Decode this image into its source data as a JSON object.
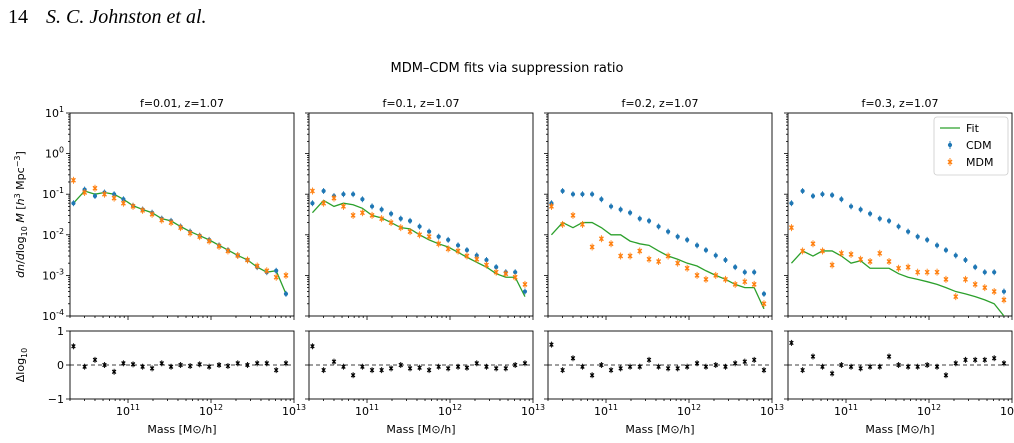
{
  "page_header": {
    "page_number": "14",
    "authors": "S. C. Johnston et al."
  },
  "figure": {
    "suptitle": "MDM–CDM fits via suppression ratio",
    "xlabel": "Mass [$M_\\odot/h$]",
    "ylabel_top": "dn/dlog10 M [h3 Mpc−3]",
    "ylabel_bottom": "Δlog10"
  },
  "colors": {
    "cdm": "#1f77b4",
    "mdm": "#ff7f0e",
    "fit": "#2ca02c",
    "residual": "#000000"
  },
  "chart_data": [
    {
      "type": "scatter",
      "title": "f=0.01, z=1.07",
      "xscale": "log",
      "yscale": "log",
      "xlim": [
        20000000000.0,
        10000000000000.0
      ],
      "ylim": [
        0.0001,
        10
      ],
      "x": [
        22000000000.0,
        30000000000.0,
        40000000000.0,
        52000000000.0,
        68000000000.0,
        88000000000.0,
        115000000000.0,
        150000000000.0,
        195000000000.0,
        255000000000.0,
        330000000000.0,
        430000000000.0,
        560000000000.0,
        730000000000.0,
        950000000000.0,
        1250000000000.0,
        1600000000000.0,
        2100000000000.0,
        2750000000000.0,
        3600000000000.0,
        4700000000000.0,
        6100000000000.0,
        8000000000000.0
      ],
      "series": [
        {
          "name": "CDM",
          "values": [
            0.06,
            0.13,
            0.09,
            0.11,
            0.1,
            0.075,
            0.052,
            0.042,
            0.035,
            0.025,
            0.022,
            0.016,
            0.012,
            0.0095,
            0.0075,
            0.0055,
            0.0042,
            0.0031,
            0.0024,
            0.0016,
            0.0012,
            0.0013,
            0.00035
          ]
        },
        {
          "name": "MDM",
          "values": [
            0.22,
            0.11,
            0.14,
            0.1,
            0.08,
            0.06,
            0.05,
            0.04,
            0.032,
            0.023,
            0.02,
            0.015,
            0.011,
            0.009,
            0.007,
            0.0052,
            0.004,
            0.0031,
            0.0024,
            0.0017,
            0.0013,
            0.0009,
            0.001
          ]
        },
        {
          "name": "Fit",
          "values": [
            0.06,
            0.12,
            0.1,
            0.11,
            0.1,
            0.075,
            0.052,
            0.042,
            0.035,
            0.025,
            0.022,
            0.016,
            0.012,
            0.0095,
            0.0075,
            0.0055,
            0.0042,
            0.0031,
            0.0024,
            0.0016,
            0.0012,
            0.0013,
            0.00035
          ]
        }
      ],
      "residual": {
        "ylim": [
          -1,
          1
        ],
        "values": [
          0.55,
          -0.05,
          0.15,
          0.0,
          -0.2,
          0.05,
          0.02,
          -0.05,
          -0.1,
          0.05,
          -0.05,
          0.0,
          -0.03,
          0.02,
          -0.05,
          0.0,
          -0.03,
          0.05,
          0.0,
          0.05,
          0.05,
          -0.15,
          0.05
        ]
      }
    },
    {
      "type": "scatter",
      "title": "f=0.1, z=1.07",
      "xscale": "log",
      "yscale": "log",
      "xlim": [
        20000000000.0,
        10000000000000.0
      ],
      "ylim": [
        0.0001,
        10
      ],
      "x": [
        22000000000.0,
        30000000000.0,
        40000000000.0,
        52000000000.0,
        68000000000.0,
        88000000000.0,
        115000000000.0,
        150000000000.0,
        195000000000.0,
        255000000000.0,
        330000000000.0,
        430000000000.0,
        560000000000.0,
        730000000000.0,
        950000000000.0,
        1250000000000.0,
        1600000000000.0,
        2100000000000.0,
        2750000000000.0,
        3600000000000.0,
        4700000000000.0,
        6100000000000.0,
        8000000000000.0
      ],
      "series": [
        {
          "name": "CDM",
          "values": [
            0.06,
            0.12,
            0.09,
            0.1,
            0.1,
            0.075,
            0.05,
            0.042,
            0.033,
            0.025,
            0.022,
            0.016,
            0.012,
            0.009,
            0.0075,
            0.0055,
            0.0042,
            0.0031,
            0.0024,
            0.0016,
            0.0012,
            0.0012,
            0.0004
          ]
        },
        {
          "name": "MDM",
          "values": [
            0.12,
            0.06,
            0.08,
            0.05,
            0.03,
            0.035,
            0.03,
            0.025,
            0.02,
            0.015,
            0.012,
            0.01,
            0.009,
            0.006,
            0.0045,
            0.004,
            0.003,
            0.0025,
            0.0018,
            0.0012,
            0.0011,
            0.0009,
            0.0006
          ]
        },
        {
          "name": "Fit",
          "values": [
            0.035,
            0.07,
            0.05,
            0.06,
            0.055,
            0.045,
            0.03,
            0.026,
            0.02,
            0.015,
            0.014,
            0.01,
            0.0075,
            0.006,
            0.005,
            0.0037,
            0.0028,
            0.0021,
            0.0016,
            0.0011,
            0.0009,
            0.0009,
            0.0003
          ]
        }
      ],
      "residual": {
        "ylim": [
          -1,
          1
        ],
        "values": [
          0.55,
          -0.15,
          0.1,
          -0.05,
          -0.3,
          -0.05,
          -0.15,
          -0.15,
          -0.1,
          0.0,
          -0.1,
          -0.08,
          -0.15,
          -0.05,
          -0.1,
          -0.05,
          -0.08,
          0.05,
          -0.05,
          -0.1,
          -0.1,
          0.0,
          0.05
        ]
      }
    },
    {
      "type": "scatter",
      "title": "f=0.2, z=1.07",
      "xscale": "log",
      "yscale": "log",
      "xlim": [
        20000000000.0,
        10000000000000.0
      ],
      "ylim": [
        0.0001,
        10
      ],
      "x": [
        22000000000.0,
        30000000000.0,
        40000000000.0,
        52000000000.0,
        68000000000.0,
        88000000000.0,
        115000000000.0,
        150000000000.0,
        195000000000.0,
        255000000000.0,
        330000000000.0,
        430000000000.0,
        560000000000.0,
        730000000000.0,
        950000000000.0,
        1250000000000.0,
        1600000000000.0,
        2100000000000.0,
        2750000000000.0,
        3600000000000.0,
        4700000000000.0,
        6100000000000.0,
        8000000000000.0
      ],
      "series": [
        {
          "name": "CDM",
          "values": [
            0.06,
            0.12,
            0.1,
            0.1,
            0.1,
            0.075,
            0.05,
            0.042,
            0.035,
            0.025,
            0.022,
            0.016,
            0.012,
            0.009,
            0.0075,
            0.0055,
            0.0042,
            0.0031,
            0.0024,
            0.0016,
            0.0012,
            0.0012,
            0.00035
          ]
        },
        {
          "name": "MDM",
          "values": [
            0.05,
            0.018,
            0.03,
            0.018,
            0.005,
            0.008,
            0.006,
            0.003,
            0.003,
            0.004,
            0.0025,
            0.0022,
            0.003,
            0.002,
            0.0015,
            0.001,
            0.0008,
            0.001,
            0.0008,
            0.0006,
            0.0007,
            0.0006,
            0.0002
          ]
        },
        {
          "name": "Fit",
          "values": [
            0.01,
            0.02,
            0.015,
            0.02,
            0.02,
            0.015,
            0.01,
            0.01,
            0.007,
            0.006,
            0.0055,
            0.004,
            0.003,
            0.0025,
            0.002,
            0.0017,
            0.0013,
            0.001,
            0.0008,
            0.0006,
            0.0005,
            0.0005,
            0.00015
          ]
        }
      ],
      "residual": {
        "ylim": [
          -1,
          1
        ],
        "values": [
          0.6,
          -0.15,
          0.2,
          -0.05,
          -0.3,
          0.0,
          -0.15,
          -0.1,
          -0.05,
          -0.05,
          0.15,
          -0.05,
          -0.1,
          -0.1,
          -0.05,
          0.05,
          -0.05,
          0.0,
          -0.05,
          0.05,
          0.1,
          0.15,
          -0.15
        ]
      }
    },
    {
      "type": "scatter",
      "title": "f=0.3, z=1.07",
      "xscale": "log",
      "yscale": "log",
      "xlim": [
        20000000000.0,
        10000000000000.0
      ],
      "ylim": [
        0.0001,
        10
      ],
      "legend": {
        "position": "top-right",
        "entries": [
          "Fit",
          "CDM",
          "MDM"
        ]
      },
      "x": [
        22000000000.0,
        30000000000.0,
        40000000000.0,
        52000000000.0,
        68000000000.0,
        88000000000.0,
        115000000000.0,
        150000000000.0,
        195000000000.0,
        255000000000.0,
        330000000000.0,
        430000000000.0,
        560000000000.0,
        730000000000.0,
        950000000000.0,
        1250000000000.0,
        1600000000000.0,
        2100000000000.0,
        2750000000000.0,
        3600000000000.0,
        4700000000000.0,
        6100000000000.0,
        8000000000000.0
      ],
      "series": [
        {
          "name": "CDM",
          "values": [
            0.06,
            0.12,
            0.09,
            0.1,
            0.095,
            0.075,
            0.05,
            0.042,
            0.033,
            0.025,
            0.022,
            0.016,
            0.012,
            0.009,
            0.0075,
            0.0055,
            0.0042,
            0.0031,
            0.0024,
            0.0016,
            0.0012,
            0.0012,
            0.0004
          ]
        },
        {
          "name": "MDM",
          "values": [
            0.015,
            0.004,
            0.006,
            0.004,
            0.0018,
            0.0035,
            0.0033,
            0.0025,
            0.0022,
            0.0035,
            0.0022,
            0.0015,
            0.0016,
            0.0012,
            0.0012,
            0.0012,
            0.0008,
            0.0003,
            0.0008,
            0.0006,
            0.0005,
            0.0004,
            0.00025
          ]
        },
        {
          "name": "Fit",
          "values": [
            0.002,
            0.004,
            0.003,
            0.004,
            0.004,
            0.003,
            0.002,
            0.0023,
            0.0015,
            0.0015,
            0.0015,
            0.0011,
            0.0009,
            0.0008,
            0.0007,
            0.0006,
            0.0005,
            0.0004,
            0.00035,
            0.0003,
            0.00025,
            0.0002,
            0.0001
          ]
        }
      ],
      "residual": {
        "ylim": [
          -1,
          1
        ],
        "values": [
          0.65,
          -0.15,
          0.25,
          -0.05,
          -0.25,
          0.0,
          -0.05,
          -0.1,
          -0.05,
          -0.05,
          0.25,
          0.0,
          -0.05,
          -0.05,
          0.0,
          -0.05,
          -0.3,
          0.05,
          0.15,
          0.15,
          0.15,
          0.2,
          0.05
        ]
      }
    }
  ]
}
